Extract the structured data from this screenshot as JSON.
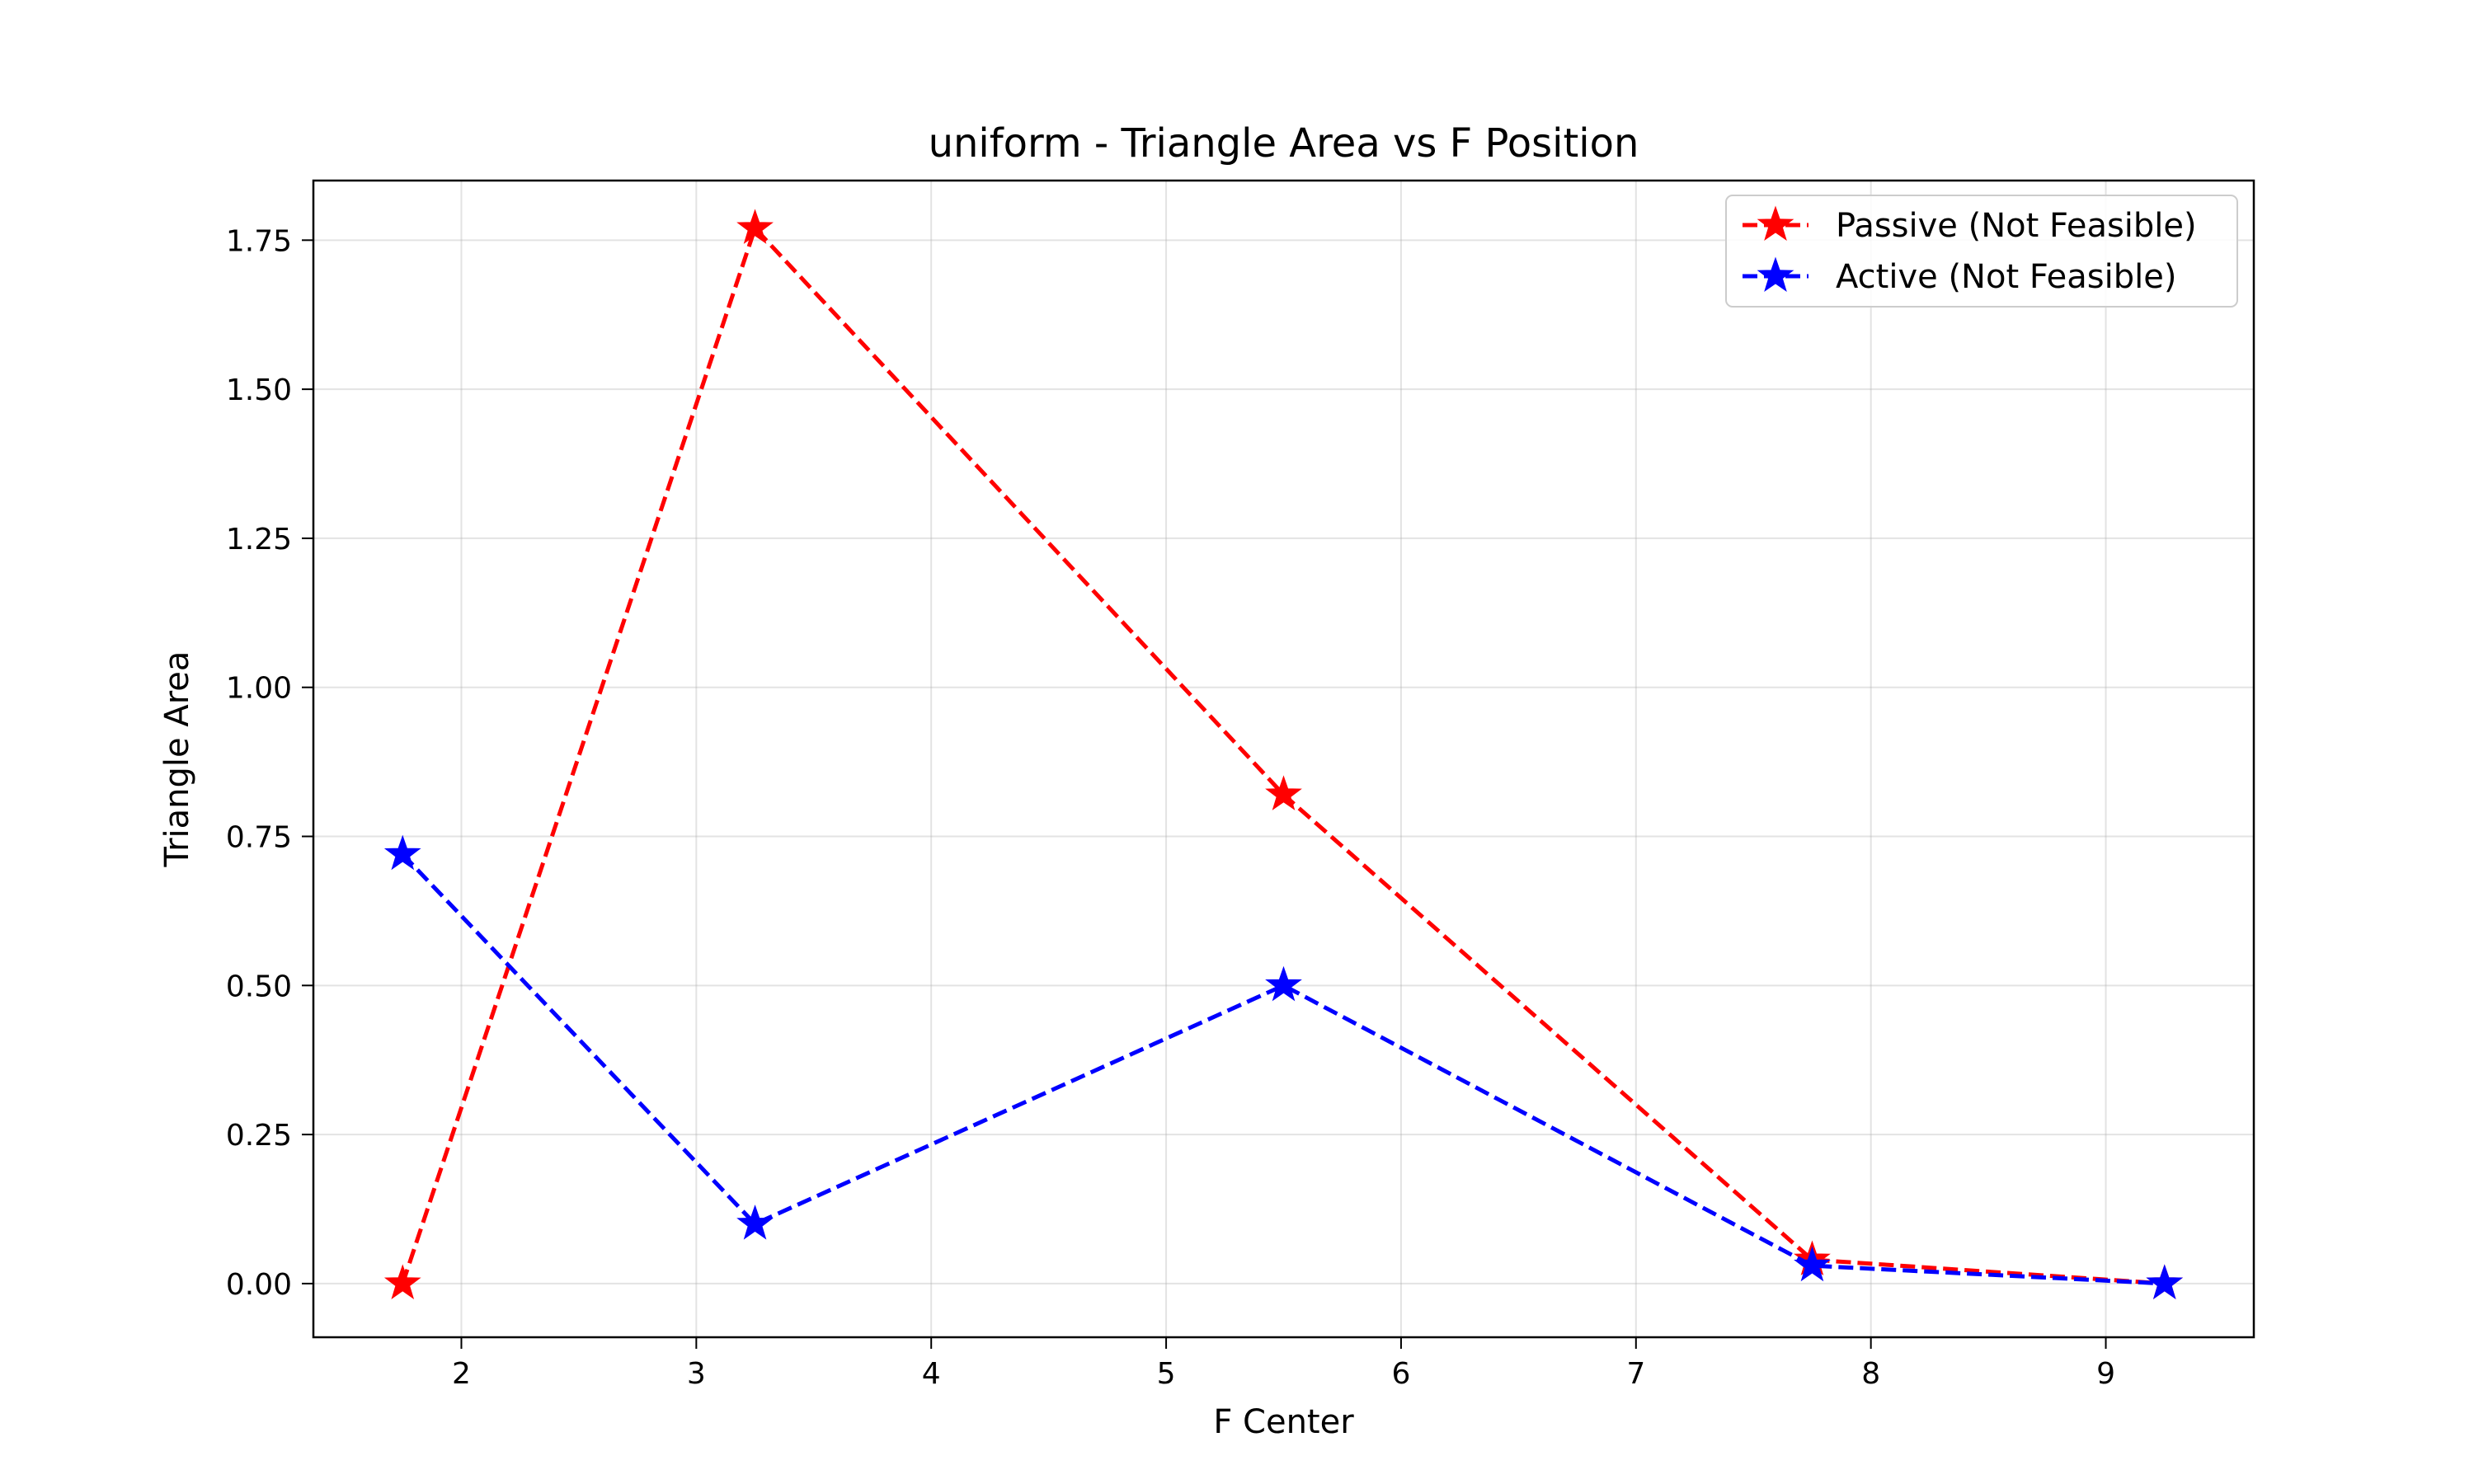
{
  "chart_data": {
    "type": "line",
    "title": "uniform - Triangle Area vs F Position",
    "xlabel": "F Center",
    "ylabel": "Triangle Area",
    "xlim": [
      1.37,
      9.63
    ],
    "ylim": [
      -0.09,
      1.85
    ],
    "xticks": [
      2,
      3,
      4,
      5,
      6,
      7,
      8,
      9
    ],
    "yticks": [
      0.0,
      0.25,
      0.5,
      0.75,
      1.0,
      1.25,
      1.5,
      1.75
    ],
    "ytick_labels": [
      "0.00",
      "0.25",
      "0.50",
      "0.75",
      "1.00",
      "1.25",
      "1.50",
      "1.75"
    ],
    "grid": true,
    "legend_position": "top-right",
    "x": [
      1.75,
      3.25,
      5.5,
      7.75,
      9.25
    ],
    "series": [
      {
        "name": "Passive (Not Feasible)",
        "color": "#ff0000",
        "marker": "star",
        "linestyle": "dashed",
        "values": [
          0.0,
          1.77,
          0.82,
          0.04,
          0.0
        ]
      },
      {
        "name": "Active (Not Feasible)",
        "color": "#0000ff",
        "marker": "star",
        "linestyle": "dashed",
        "values": [
          0.72,
          0.1,
          0.5,
          0.03,
          0.0
        ]
      }
    ]
  }
}
